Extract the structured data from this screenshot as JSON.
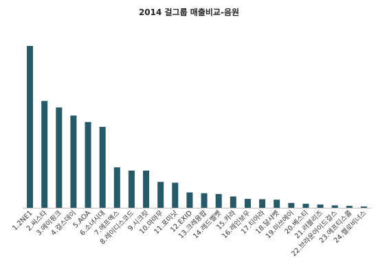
{
  "chart_data": {
    "type": "bar",
    "title": "2014 걸그룹 매출비교-음원",
    "xlabel": "",
    "ylabel": "",
    "grid": false,
    "categories": [
      "1.2NE1",
      "2.씨스타",
      "3.에이핑크",
      "4.걸스데이",
      "5.AOA",
      "6.소녀시대",
      "7.에프엑스",
      "8.레이디스코드",
      "9.시크릿",
      "10.마마무",
      "11.포미닛",
      "12.EXID",
      "13.크레용팝",
      "14.레드벨벳",
      "15.카라",
      "16.레인보우",
      "17.티아라",
      "18.달샤벳",
      "19.미쓰에이",
      "20.베스티",
      "21.러블리즈",
      "22.브라운아이드걸스",
      "23.에프티스콜",
      "24.헬로비너스"
    ],
    "values": [
      100,
      66,
      62,
      57,
      53,
      50,
      25,
      23,
      23,
      16,
      15.5,
      9.5,
      9,
      8.5,
      7,
      5.5,
      5.3,
      5,
      3,
      2.5,
      2,
      1.5,
      1.2,
      0.8
    ],
    "ylim": [
      0,
      100
    ],
    "bar_color": "#265a69",
    "axis_color": "#bfbfbf"
  }
}
